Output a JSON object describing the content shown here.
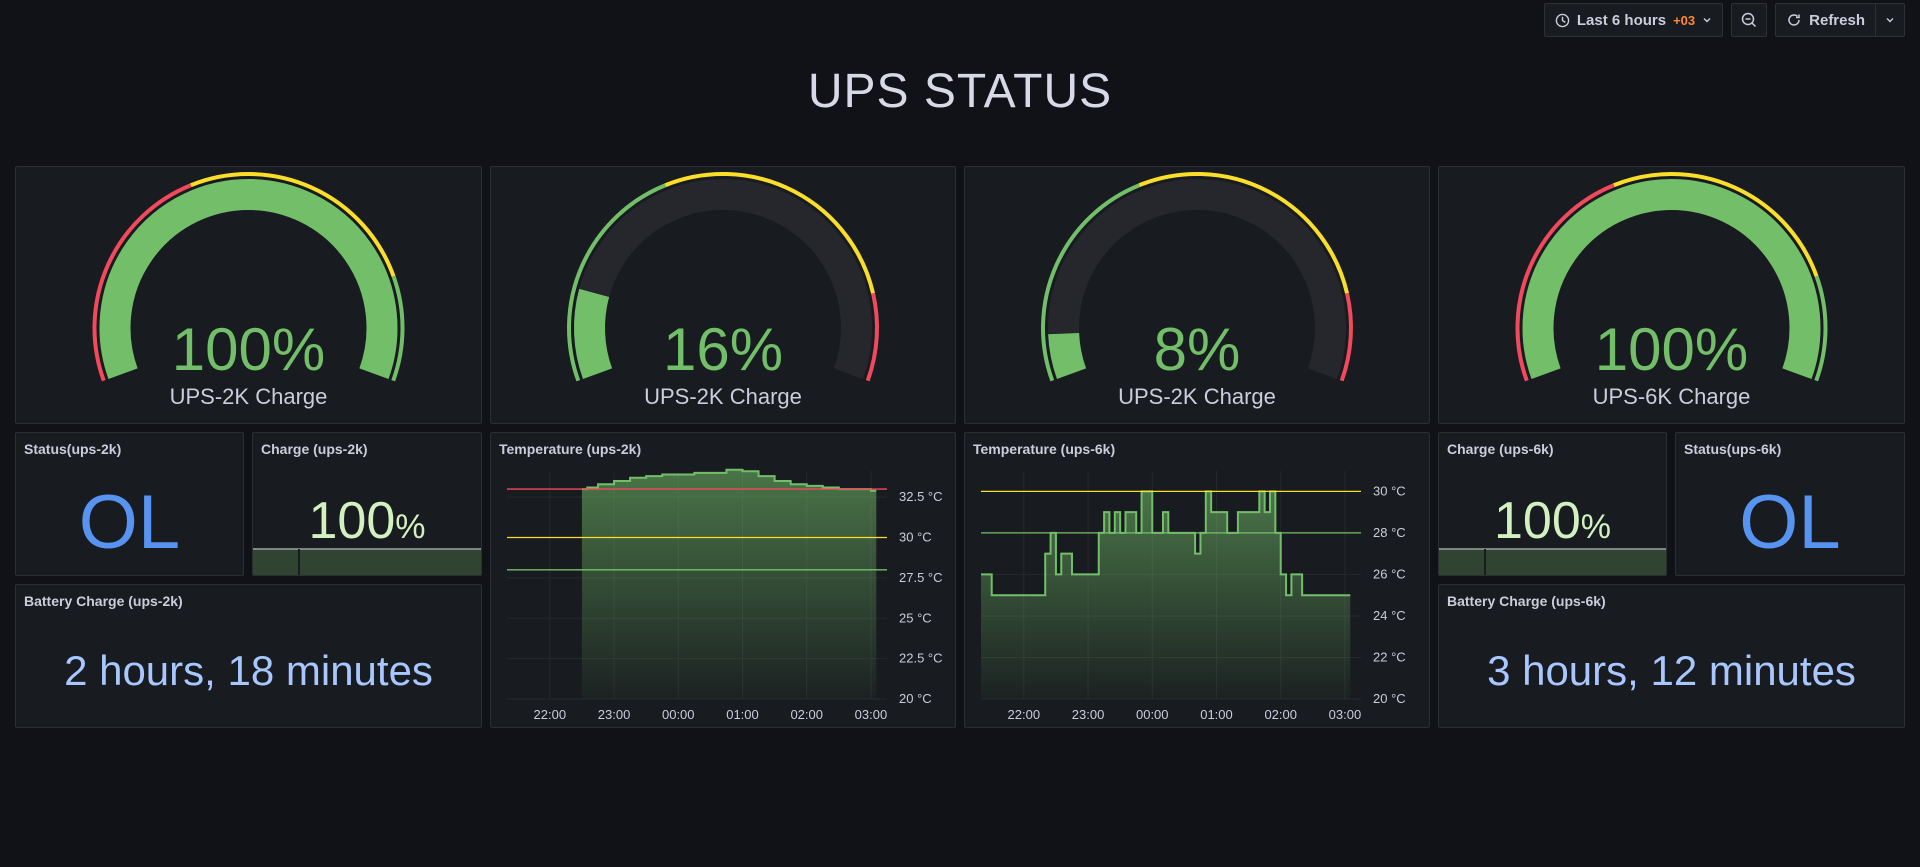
{
  "toolbar": {
    "time_range": "Last 6 hours",
    "timezone": "+03",
    "refresh_label": "Refresh"
  },
  "dashboard": {
    "title": "UPS STATUS"
  },
  "gauges": [
    {
      "value": 100,
      "display": "100%",
      "label": "UPS-2K Charge",
      "thresholds": "red-green-yellow-green"
    },
    {
      "value": 16,
      "display": "16%",
      "label": "UPS-2K Charge",
      "thresholds": "green-yellow-red"
    },
    {
      "value": 8,
      "display": "8%",
      "label": "UPS-2K Charge",
      "thresholds": "green-yellow-red"
    },
    {
      "value": 100,
      "display": "100%",
      "label": "UPS-6K Charge",
      "thresholds": "red-green-yellow-green"
    }
  ],
  "stats": {
    "status_2k": {
      "title": "Status(ups-2k)",
      "value": "OL"
    },
    "charge_2k": {
      "title": "Charge (ups-2k)",
      "value": "100",
      "unit": "%"
    },
    "battery_2k": {
      "title": "Battery Charge (ups-2k)",
      "value": "2 hours, 18 minutes"
    },
    "charge_6k": {
      "title": "Charge (ups-6k)",
      "value": "100",
      "unit": "%"
    },
    "status_6k": {
      "title": "Status(ups-6k)",
      "value": "OL"
    },
    "battery_6k": {
      "title": "Battery Charge (ups-6k)",
      "value": "3 hours, 12 minutes"
    }
  },
  "colors": {
    "green": "#73bf69",
    "yellow": "#fade2a",
    "red": "#f2495c",
    "blue": "#5794f2",
    "panel_bg": "#181b1f"
  },
  "chart_data": [
    {
      "type": "area",
      "title": "Temperature (ups-2k)",
      "x_ticks": [
        "22:00",
        "23:00",
        "00:00",
        "01:00",
        "02:00",
        "03:00"
      ],
      "y_ticks": [
        "20 °C",
        "22.5 °C",
        "25 °C",
        "27.5 °C",
        "30 °C",
        "32.5 °C"
      ],
      "ylim": [
        20,
        33.5
      ],
      "thresholds": [
        {
          "value": 33,
          "color": "red"
        },
        {
          "value": 30,
          "color": "yellow"
        },
        {
          "value": 28,
          "color": "green"
        }
      ],
      "x": [
        "22:30",
        "22:35",
        "22:45",
        "23:00",
        "23:15",
        "23:30",
        "23:45",
        "00:00",
        "00:15",
        "00:30",
        "00:45",
        "01:00",
        "01:15",
        "01:30",
        "01:45",
        "02:00",
        "02:15",
        "02:30",
        "02:45",
        "03:00",
        "03:05"
      ],
      "series": [
        {
          "values": [
            33.0,
            33.1,
            33.3,
            33.5,
            33.7,
            33.8,
            33.9,
            33.9,
            34.0,
            34.0,
            34.2,
            34.1,
            33.8,
            33.5,
            33.3,
            33.2,
            33.1,
            33.0,
            33.0,
            32.9,
            32.9
          ]
        }
      ]
    },
    {
      "type": "area",
      "title": "Temperature (ups-6k)",
      "x_ticks": [
        "22:00",
        "23:00",
        "00:00",
        "01:00",
        "02:00",
        "03:00"
      ],
      "y_ticks": [
        "20 °C",
        "22 °C",
        "24 °C",
        "26 °C",
        "28 °C",
        "30 °C"
      ],
      "ylim": [
        20,
        30.5
      ],
      "thresholds": [
        {
          "value": 30,
          "color": "yellow"
        },
        {
          "value": 28,
          "color": "green"
        }
      ],
      "x": [
        "21:20",
        "21:30",
        "21:45",
        "22:00",
        "22:15",
        "22:20",
        "22:25",
        "22:30",
        "22:35",
        "22:40",
        "22:45",
        "23:00",
        "23:10",
        "23:15",
        "23:20",
        "23:25",
        "23:30",
        "23:35",
        "23:40",
        "23:45",
        "23:50",
        "00:00",
        "00:10",
        "00:15",
        "00:20",
        "00:30",
        "00:40",
        "00:45",
        "00:50",
        "00:55",
        "01:00",
        "01:10",
        "01:15",
        "01:20",
        "01:30",
        "01:40",
        "01:45",
        "01:50",
        "01:55",
        "02:00",
        "02:05",
        "02:10",
        "02:20",
        "02:30",
        "02:40",
        "02:50",
        "03:00",
        "03:05"
      ],
      "series": [
        {
          "values": [
            26,
            25,
            25,
            25,
            25,
            27,
            28,
            26,
            27,
            27,
            26,
            26,
            28,
            29,
            28,
            29,
            28,
            29,
            29,
            28,
            30,
            28,
            29,
            28,
            28,
            28,
            27,
            28,
            30,
            29,
            29,
            28,
            28,
            29,
            29,
            30,
            29,
            30,
            28,
            26,
            25,
            26,
            25,
            25,
            25,
            25,
            25,
            25
          ]
        }
      ]
    }
  ]
}
